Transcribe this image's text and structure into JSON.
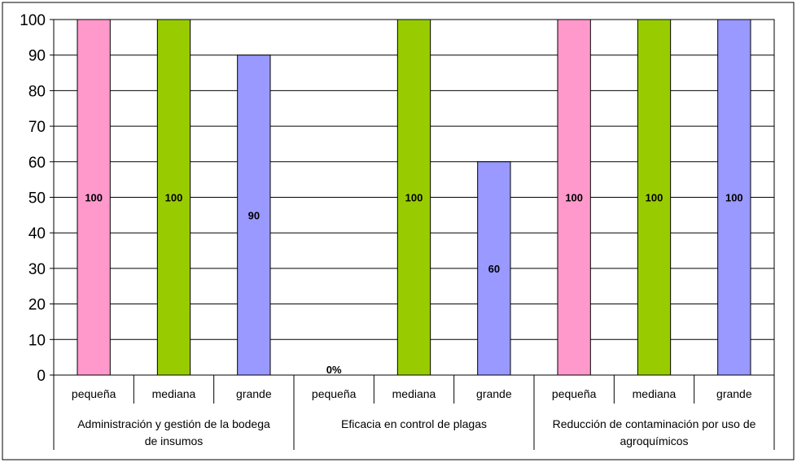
{
  "chart_data": {
    "type": "bar",
    "ylim": [
      0,
      100
    ],
    "yticks": [
      "0",
      "10",
      "20",
      "30",
      "40",
      "50",
      "60",
      "70",
      "80",
      "90",
      "100"
    ],
    "grid": true,
    "groups": [
      {
        "label": "Administración y gestión de la bodega de insumos",
        "label_lines": [
          "Administración y gestión de la bodega",
          "de insumos"
        ],
        "bars": [
          {
            "category": "pequeña",
            "value": 100,
            "label": "100",
            "color": "#ff99cc"
          },
          {
            "category": "mediana",
            "value": 100,
            "label": "100",
            "color": "#99cc00"
          },
          {
            "category": "grande",
            "value": 90,
            "label": "90",
            "color": "#9999ff"
          }
        ]
      },
      {
        "label": "Eficacia en control de plagas",
        "label_lines": [
          "Eficacia en control de plagas"
        ],
        "bars": [
          {
            "category": "pequeña",
            "value": 0,
            "label": "0%",
            "color": "#ff99cc"
          },
          {
            "category": "mediana",
            "value": 100,
            "label": "100",
            "color": "#99cc00"
          },
          {
            "category": "grande",
            "value": 60,
            "label": "60",
            "color": "#9999ff"
          }
        ]
      },
      {
        "label": "Reducción de contaminación por uso de agroquímicos",
        "label_lines": [
          "Reducción de contaminación por uso de",
          "agroquímicos"
        ],
        "bars": [
          {
            "category": "pequeña",
            "value": 100,
            "label": "100",
            "color": "#ff99cc"
          },
          {
            "category": "mediana",
            "value": 100,
            "label": "100",
            "color": "#99cc00"
          },
          {
            "category": "grande",
            "value": 100,
            "label": "100",
            "color": "#9999ff"
          }
        ]
      }
    ]
  }
}
